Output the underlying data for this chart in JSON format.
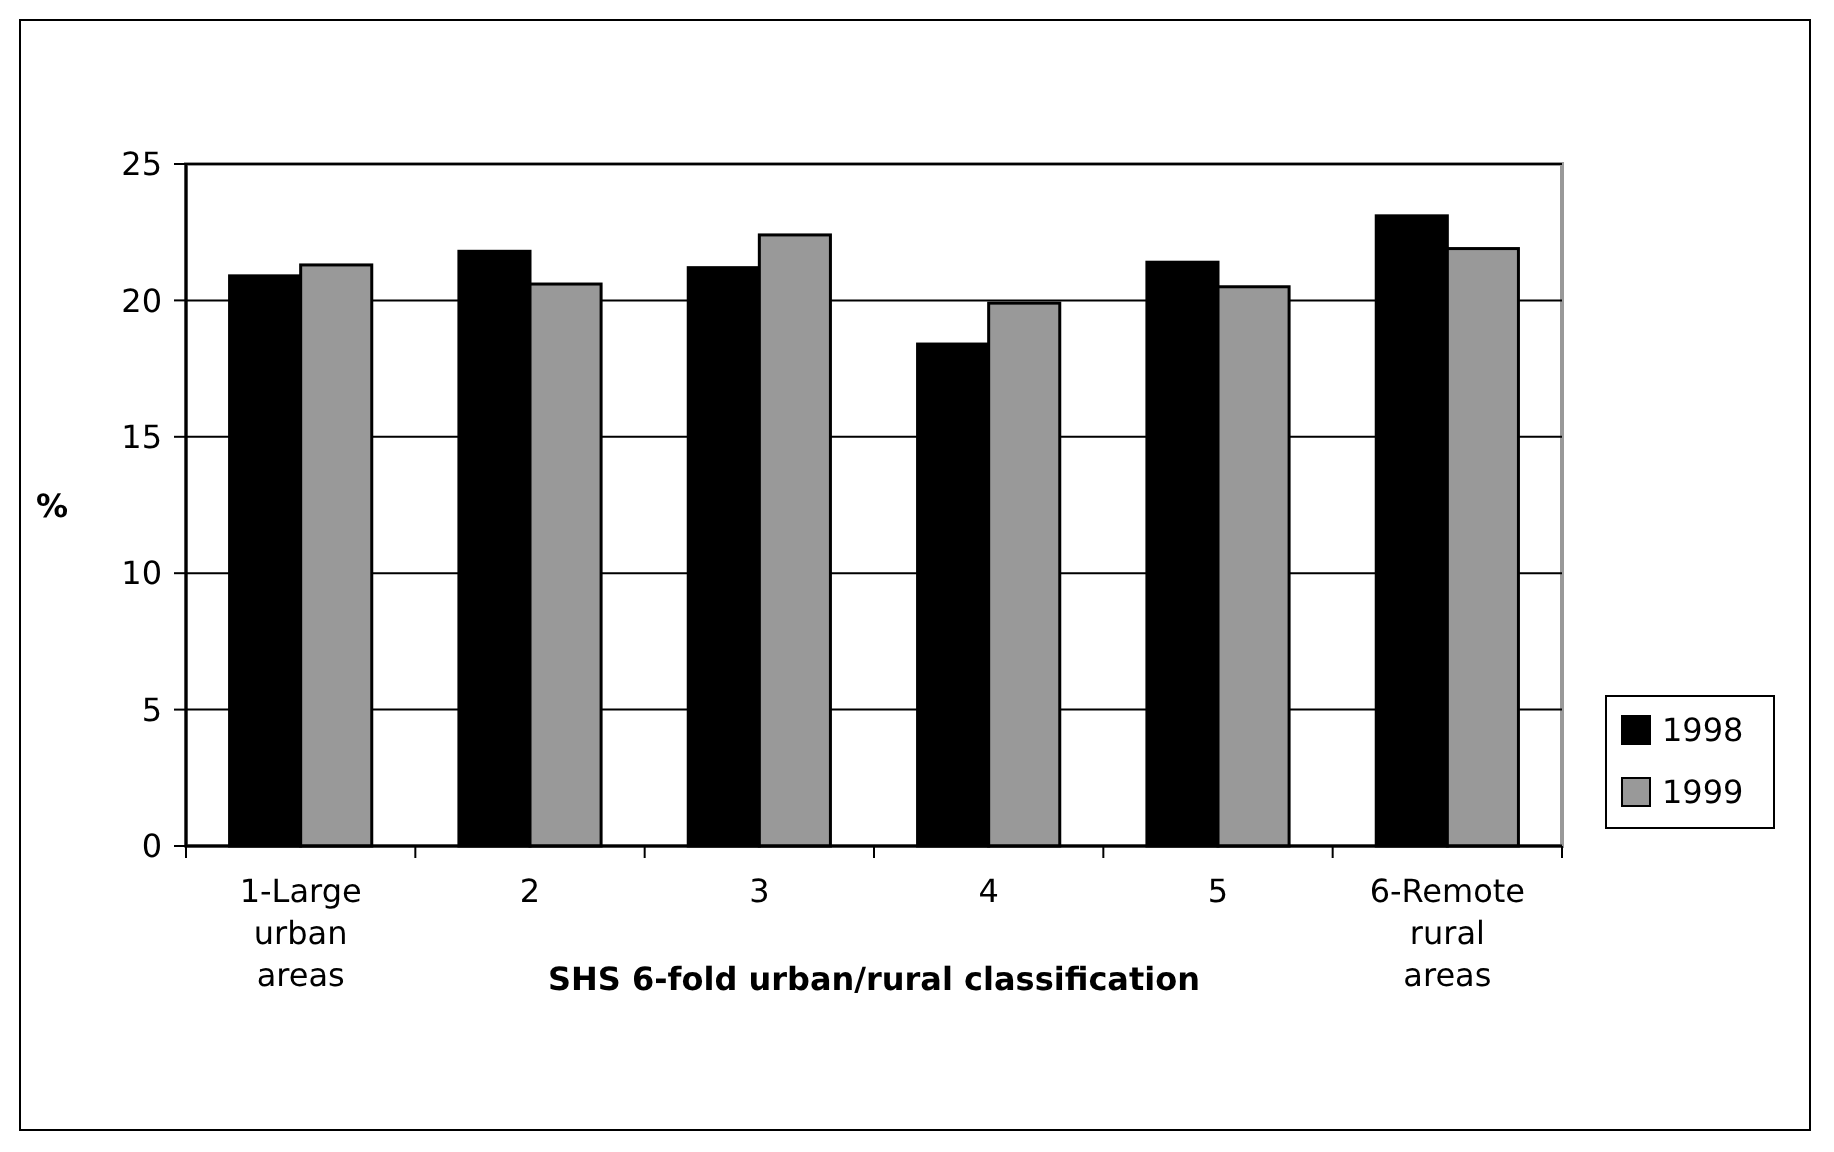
{
  "chart_data": {
    "type": "bar",
    "xlabel": "SHS 6-fold urban/rural classification",
    "ylabel": "%",
    "categories": [
      "1-Large urban areas",
      "2",
      "3",
      "4",
      "5",
      "6-Remote rural areas"
    ],
    "series": [
      {
        "name": "1998",
        "color": "#000000",
        "values": [
          20.9,
          21.8,
          21.2,
          18.4,
          21.4,
          23.1
        ]
      },
      {
        "name": "1999",
        "color": "#999999",
        "values": [
          21.3,
          20.6,
          22.4,
          19.9,
          20.5,
          21.9
        ]
      }
    ],
    "ylim": [
      0,
      25
    ],
    "yticks": [
      0,
      5,
      10,
      15,
      20,
      25
    ],
    "grid": "y",
    "legend": "right"
  }
}
